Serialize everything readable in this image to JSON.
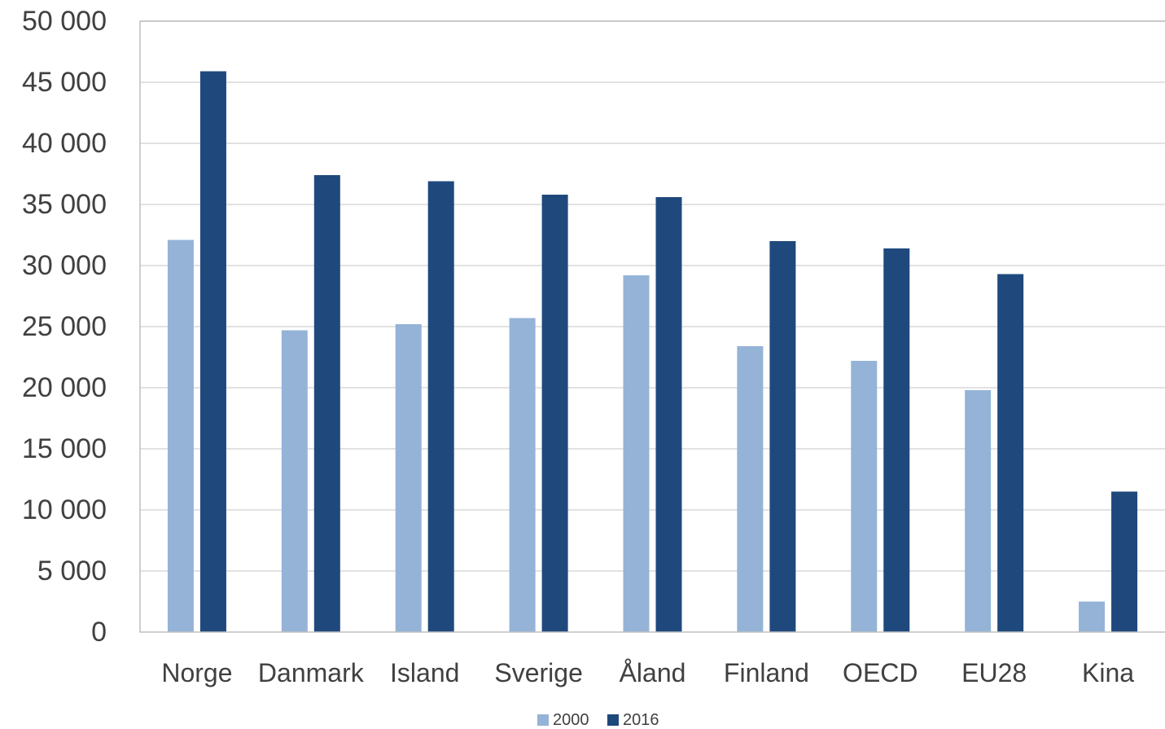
{
  "chart_data": {
    "type": "bar",
    "categories": [
      "Norge",
      "Danmark",
      "Island",
      "Sverige",
      "Åland",
      "Finland",
      "OECD",
      "EU28",
      "Kina"
    ],
    "series": [
      {
        "name": "2000",
        "color": "#95b3d7",
        "values": [
          32100,
          24700,
          25200,
          25700,
          29200,
          23400,
          22200,
          19800,
          2500
        ]
      },
      {
        "name": "2016",
        "color": "#1f497d",
        "values": [
          45900,
          37400,
          36900,
          35800,
          35600,
          32000,
          31400,
          29300,
          11500
        ]
      }
    ],
    "ylim": [
      0,
      50000
    ],
    "yticks": [
      {
        "value": 0,
        "label": "0"
      },
      {
        "value": 5000,
        "label": "5 000"
      },
      {
        "value": 10000,
        "label": "10 000"
      },
      {
        "value": 15000,
        "label": "15 000"
      },
      {
        "value": 20000,
        "label": "20 000"
      },
      {
        "value": 25000,
        "label": "25 000"
      },
      {
        "value": 30000,
        "label": "30 000"
      },
      {
        "value": 35000,
        "label": "35 000"
      },
      {
        "value": 40000,
        "label": "40 000"
      },
      {
        "value": 45000,
        "label": "45 000"
      },
      {
        "value": 50000,
        "label": "50 000"
      }
    ],
    "grid": true,
    "legend": "bottom-center",
    "title": "",
    "xlabel": "",
    "ylabel": ""
  }
}
